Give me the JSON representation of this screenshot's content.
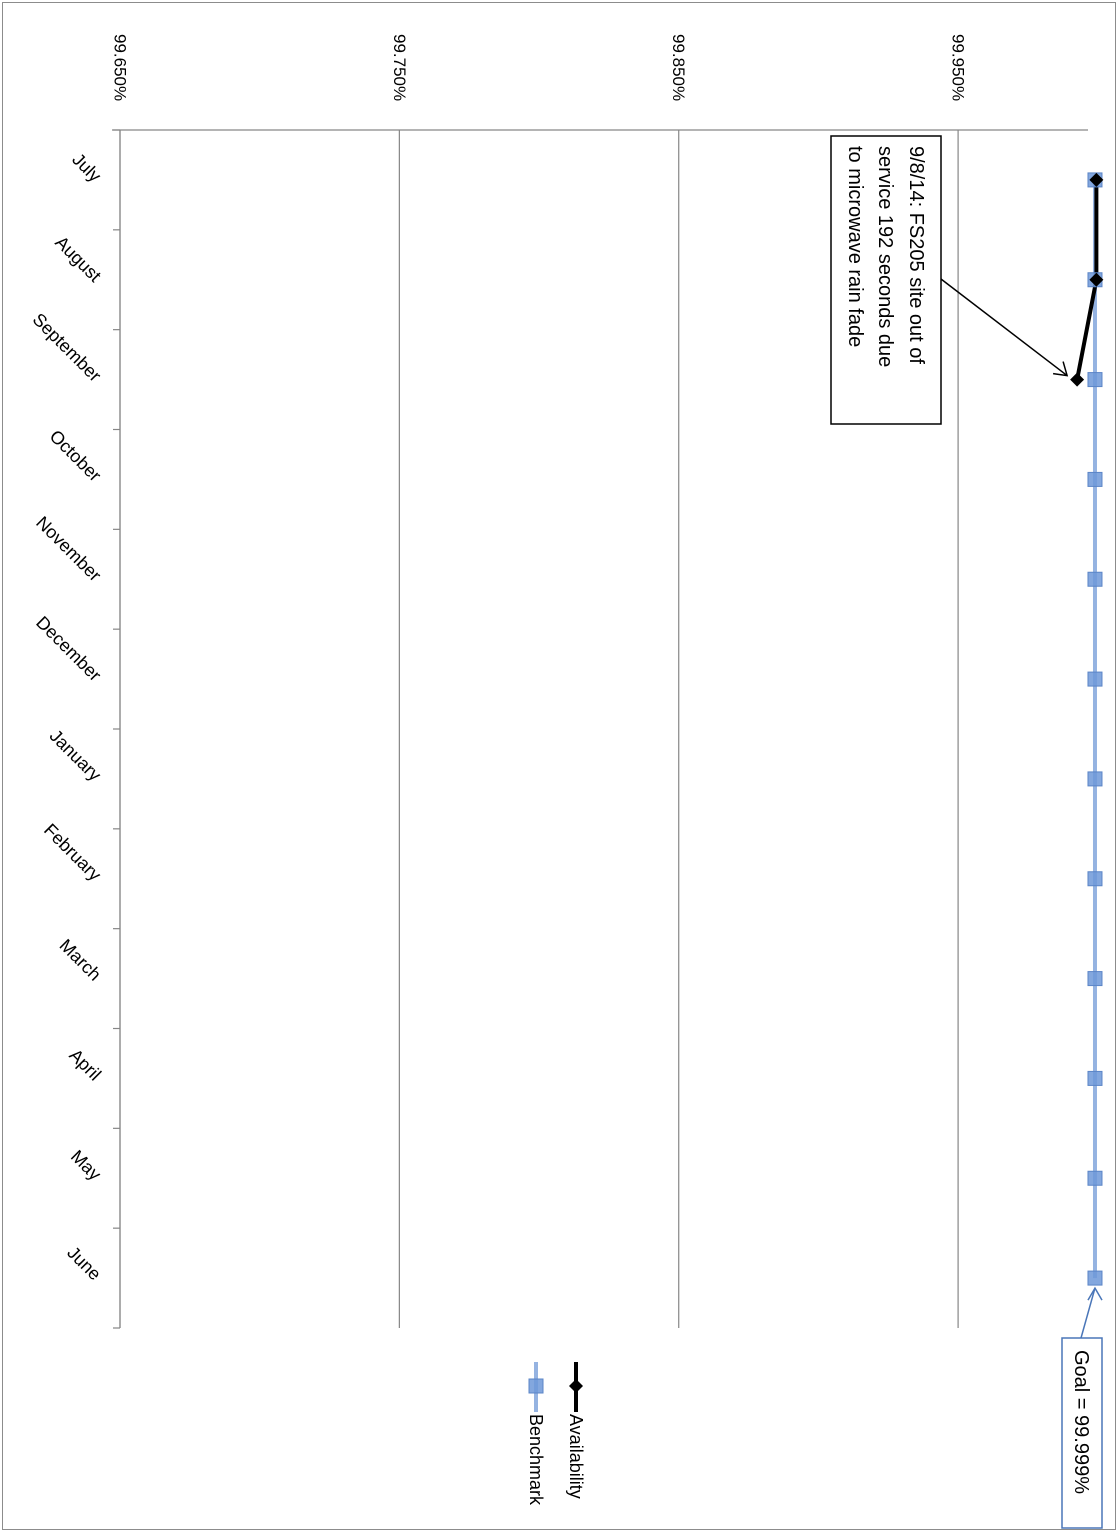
{
  "chart_data": {
    "type": "line",
    "orientation": "rotated-90-clockwise",
    "title": "",
    "xlabel": "",
    "ylabel": "",
    "categories": [
      "July",
      "August",
      "September",
      "October",
      "November",
      "December",
      "January",
      "February",
      "March",
      "April",
      "May",
      "June"
    ],
    "y_ticks": [
      "99.650%",
      "99.750%",
      "99.850%",
      "99.950%"
    ],
    "y_tick_values": [
      99.65,
      99.75,
      99.85,
      99.95
    ],
    "ylim": [
      99.65,
      99.9965
    ],
    "grid": true,
    "legend_position": "bottom",
    "series": [
      {
        "name": "Availability",
        "color": "#000000",
        "marker": "diamond",
        "values": [
          99.9995,
          99.9995,
          99.9926,
          null,
          null,
          null,
          null,
          null,
          null,
          null,
          null,
          null
        ]
      },
      {
        "name": "Benchmark",
        "color": "#95b3e1",
        "marker_color": "#6d98d8",
        "marker": "square",
        "values": [
          99.999,
          99.999,
          99.999,
          99.999,
          99.999,
          99.999,
          99.999,
          99.999,
          99.999,
          99.999,
          99.999,
          99.999
        ]
      }
    ],
    "annotations": [
      {
        "lines": [
          "9/8/14:  FS205 site out of",
          "service 192 seconds due",
          "to microwave rain fade"
        ],
        "category": "September",
        "series": "Availability"
      },
      {
        "lines": [
          "Goal = 99.999%"
        ],
        "category": "June",
        "series": "Benchmark"
      }
    ]
  }
}
